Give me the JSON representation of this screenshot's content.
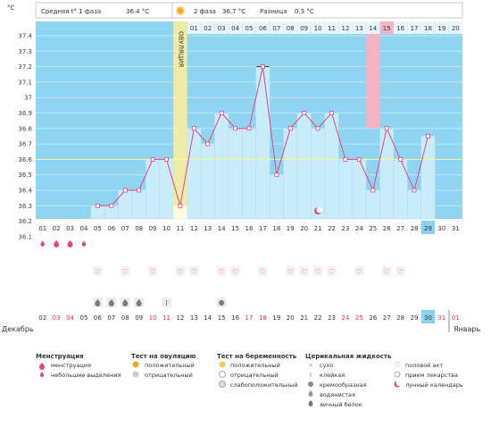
{
  "header": {
    "unit": "°C",
    "phase1_label": "Средняя t° 1 фаза",
    "phase1_value": "36.4 °C",
    "phase2_label": "2 фаза",
    "phase2_value": "36.7 °C",
    "diff_label": "Разница",
    "diff_value": "0.3 °C",
    "ovulation_label": "ОВУЛЯЦИЯ"
  },
  "chart_data": {
    "type": "line",
    "ylim": [
      36.1,
      37.4
    ],
    "yticks": [
      "37.4",
      "37.3",
      "37.2",
      "37.1",
      "37",
      "36.9",
      "36.8",
      "36.7",
      "36.6",
      "36.5",
      "36.4",
      "36.3",
      "36.2",
      "36.1"
    ],
    "cycle_days": [
      "01",
      "02",
      "03",
      "04",
      "05",
      "06",
      "07",
      "08",
      "09",
      "10",
      "11",
      "12",
      "13",
      "14",
      "15",
      "16",
      "17",
      "18",
      "19",
      "20"
    ],
    "dates_top": [
      "01",
      "02",
      "03",
      "04",
      "05",
      "06",
      "07",
      "08",
      "09",
      "10",
      "11",
      "12",
      "13",
      "14",
      "15",
      "16",
      "17",
      "18",
      "19",
      "20",
      "21",
      "22",
      "23",
      "24",
      "25",
      "26",
      "27",
      "28",
      "29",
      "30",
      "31"
    ],
    "dates_bottom": [
      "02",
      "03",
      "04",
      "05",
      "06",
      "07",
      "08",
      "09",
      "10",
      "11",
      "12",
      "13",
      "14",
      "15",
      "16",
      "17",
      "18",
      "19",
      "20",
      "21",
      "22",
      "23",
      "24",
      "25",
      "26",
      "27",
      "28",
      "29",
      "30",
      "31",
      "01"
    ],
    "month_left": "Декабрь",
    "month_right": "Январь",
    "cover_line": 36.6,
    "ovulation_date": "11",
    "highlight_cycle_day": "15",
    "today_date": "29",
    "temps": [
      {
        "d": "05",
        "t": 36.3
      },
      {
        "d": "06",
        "t": 36.3
      },
      {
        "d": "07",
        "t": 36.4
      },
      {
        "d": "08",
        "t": 36.4
      },
      {
        "d": "09",
        "t": 36.6
      },
      {
        "d": "10",
        "t": 36.6
      },
      {
        "d": "11",
        "t": 36.3
      },
      {
        "d": "12",
        "t": 36.8
      },
      {
        "d": "13",
        "t": 36.7
      },
      {
        "d": "14",
        "t": 36.9
      },
      {
        "d": "15",
        "t": 36.8
      },
      {
        "d": "16",
        "t": 36.8
      },
      {
        "d": "17",
        "t": 37.2
      },
      {
        "d": "18",
        "t": 36.5
      },
      {
        "d": "19",
        "t": 36.8
      },
      {
        "d": "20",
        "t": 36.9
      },
      {
        "d": "21",
        "t": 36.8
      },
      {
        "d": "22",
        "t": 36.9
      },
      {
        "d": "23",
        "t": 36.6
      },
      {
        "d": "24",
        "t": 36.6
      },
      {
        "d": "25",
        "t": 36.4
      },
      {
        "d": "26",
        "t": 36.8
      },
      {
        "d": "27",
        "t": 36.6
      },
      {
        "d": "28",
        "t": 36.4
      },
      {
        "d": "29",
        "t": 36.75
      }
    ],
    "menstruation": [
      {
        "d": "01",
        "type": "small"
      },
      {
        "d": "02",
        "type": "heavy"
      },
      {
        "d": "03",
        "type": "heavy"
      },
      {
        "d": "04",
        "type": "small"
      }
    ],
    "intercourse": [
      "05",
      "07",
      "09",
      "11",
      "12",
      "14",
      "15",
      "17",
      "19",
      "20",
      "21",
      "22",
      "24",
      "26",
      "27"
    ],
    "mucus": [
      {
        "d": "05",
        "type": "egg"
      },
      {
        "d": "06",
        "type": "egg"
      },
      {
        "d": "07",
        "type": "egg"
      },
      {
        "d": "08",
        "type": "egg"
      },
      {
        "d": "10",
        "type": "sticky"
      },
      {
        "d": "14",
        "type": "creamy"
      }
    ],
    "moon_date": "21"
  },
  "legend": {
    "menstruation": {
      "title": "Менструация",
      "items": [
        "менструация",
        "небольшие выделения"
      ]
    },
    "ovulation_test": {
      "title": "Тест на овуляцию",
      "items": [
        "положительный",
        "отрицательный"
      ]
    },
    "pregnancy_test": {
      "title": "Тест на беременность",
      "items": [
        "положительный",
        "отрицательный",
        "слабоположительный"
      ]
    },
    "mucus": {
      "title": "Церикальная жидкость",
      "items": [
        "сухо",
        "клейкая",
        "кремообразная",
        "водянистая",
        "яичный белок"
      ]
    },
    "other": {
      "items": [
        "половой акт",
        "прием лекарства",
        "лунный календарь"
      ]
    }
  },
  "colors": {
    "sky": "#8fd5f2",
    "bar": "#c9ecfb",
    "line": "#e3457f",
    "ovulation": "#fff09a",
    "highlight": "#f7b2c4",
    "today": "#88d2ef",
    "cover": "#f4f799"
  }
}
